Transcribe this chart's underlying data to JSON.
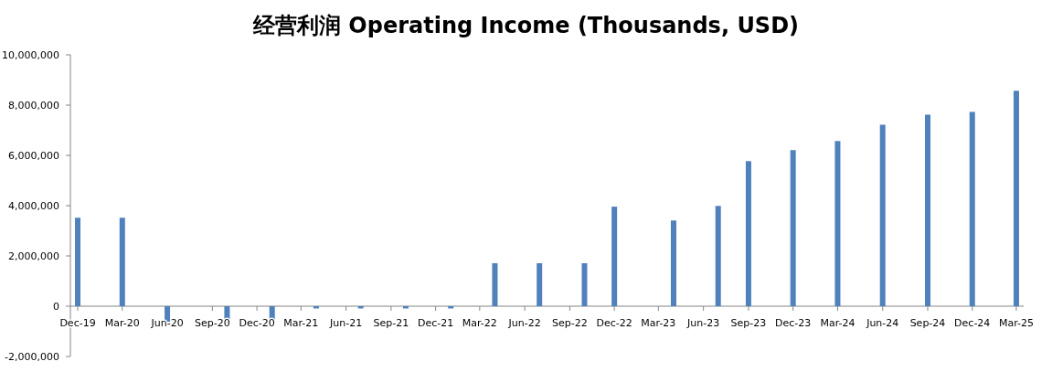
{
  "chart_data": {
    "type": "bar",
    "title": "经营利润 Operating Income (Thousands, USD)",
    "x": [
      "2019-12",
      "2020-03",
      "2020-06",
      "2020-10",
      "2021-01",
      "2021-04",
      "2021-07",
      "2021-10",
      "2022-01",
      "2022-04",
      "2022-07",
      "2022-10",
      "2022-12",
      "2023-04",
      "2023-07",
      "2023-09",
      "2023-12",
      "2024-03",
      "2024-06",
      "2024-09",
      "2024-12",
      "2025-03"
    ],
    "values": [
      3520000,
      3520000,
      -620000,
      -680000,
      -620000,
      -90000,
      -90000,
      -90000,
      -90000,
      1710000,
      1710000,
      1710000,
      3960000,
      3410000,
      3990000,
      5770000,
      6210000,
      6570000,
      7220000,
      7620000,
      7730000,
      8570000
    ],
    "color": "#4f81bd",
    "xlim": [
      "2019-11-16",
      "2025-03-16"
    ],
    "xticks": [
      {
        "value": "2019-12",
        "label": "Dec-19"
      },
      {
        "value": "2020-03",
        "label": "Mar-20"
      },
      {
        "value": "2020-06",
        "label": "Jun-20"
      },
      {
        "value": "2020-09",
        "label": "Sep-20"
      },
      {
        "value": "2020-12",
        "label": "Dec-20"
      },
      {
        "value": "2021-03",
        "label": "Mar-21"
      },
      {
        "value": "2021-06",
        "label": "Jun-21"
      },
      {
        "value": "2021-09",
        "label": "Sep-21"
      },
      {
        "value": "2021-12",
        "label": "Dec-21"
      },
      {
        "value": "2022-03",
        "label": "Mar-22"
      },
      {
        "value": "2022-06",
        "label": "Jun-22"
      },
      {
        "value": "2022-09",
        "label": "Sep-22"
      },
      {
        "value": "2022-12",
        "label": "Dec-22"
      },
      {
        "value": "2023-03",
        "label": "Mar-23"
      },
      {
        "value": "2023-06",
        "label": "Jun-23"
      },
      {
        "value": "2023-09",
        "label": "Sep-23"
      },
      {
        "value": "2023-12",
        "label": "Dec-23"
      },
      {
        "value": "2024-03",
        "label": "Mar-24"
      },
      {
        "value": "2024-06",
        "label": "Jun-24"
      },
      {
        "value": "2024-09",
        "label": "Sep-24"
      },
      {
        "value": "2024-12",
        "label": "Dec-24"
      },
      {
        "value": "2025-03",
        "label": "Mar-25"
      }
    ],
    "ylim": [
      -2000000,
      10000000
    ],
    "yticks": [
      {
        "value": -2000000,
        "label": "-2,000,000"
      },
      {
        "value": 0,
        "label": "0"
      },
      {
        "value": 2000000,
        "label": "2,000,000"
      },
      {
        "value": 4000000,
        "label": "4,000,000"
      },
      {
        "value": 6000000,
        "label": "6,000,000"
      },
      {
        "value": 8000000,
        "label": "8,000,000"
      },
      {
        "value": 10000000,
        "label": "10,000,000"
      }
    ],
    "grid": false
  }
}
